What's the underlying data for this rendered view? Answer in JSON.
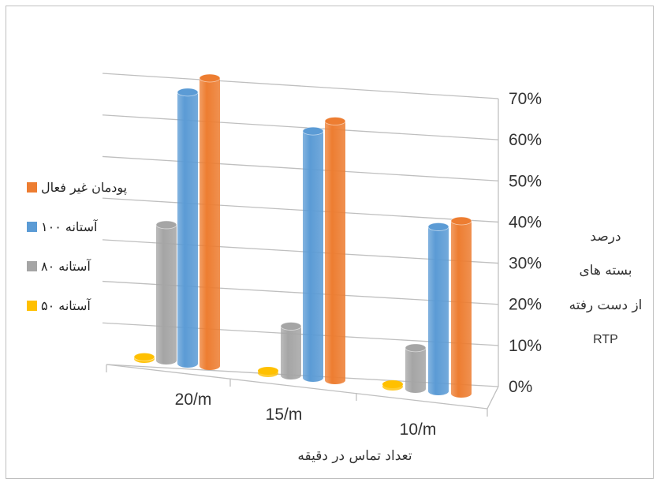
{
  "chart_data": {
    "type": "bar",
    "categories": [
      "20/m",
      "15/m",
      "10/m"
    ],
    "series": [
      {
        "name": "پودمان غیر فعال",
        "color": "#ED7D31",
        "values": [
          70,
          63,
          42
        ]
      },
      {
        "name": "آستانه ۱۰۰",
        "color": "#5B9BD5",
        "values": [
          66,
          60,
          40
        ]
      },
      {
        "name": "آستانه ۸۰",
        "color": "#A5A5A5",
        "values": [
          33,
          12,
          10
        ]
      },
      {
        "name": "آستانه ۵۰",
        "color": "#FFC000",
        "values": [
          0.5,
          0.3,
          0.2
        ]
      }
    ],
    "ylim": [
      0,
      70
    ],
    "yticks": [
      "0%",
      "10%",
      "20%",
      "30%",
      "40%",
      "50%",
      "60%",
      "70%"
    ],
    "xlabel": "تعداد تماس در دقیقه",
    "ylabel_lines": [
      "درصد",
      "بسته های",
      "از دست رفته",
      "RTP"
    ],
    "legend_position": "left",
    "grid": true
  }
}
